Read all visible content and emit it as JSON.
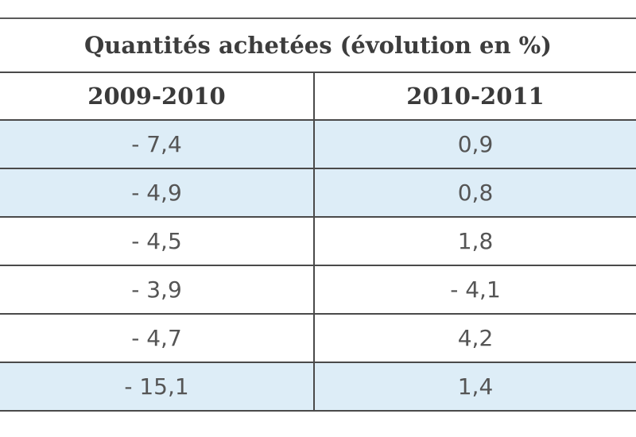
{
  "table": {
    "title": "Quantités achetées (évolution en %)",
    "columns": [
      "2009-2010",
      "2010-2011"
    ],
    "rows": [
      {
        "a": "- 7,4",
        "b": "0,9",
        "shade": "blue"
      },
      {
        "a": "- 4,9",
        "b": "0,8",
        "shade": "blue"
      },
      {
        "a": "- 4,5",
        "b": "1,8",
        "shade": "white"
      },
      {
        "a": "- 3,9",
        "b": "- 4,1",
        "shade": "white"
      },
      {
        "a": "- 4,7",
        "b": "4,2",
        "shade": "white"
      },
      {
        "a": "- 15,1",
        "b": "1,4",
        "shade": "blue"
      }
    ]
  },
  "colors": {
    "row_highlight": "#ddedf7",
    "border": "#4a4a4a"
  }
}
